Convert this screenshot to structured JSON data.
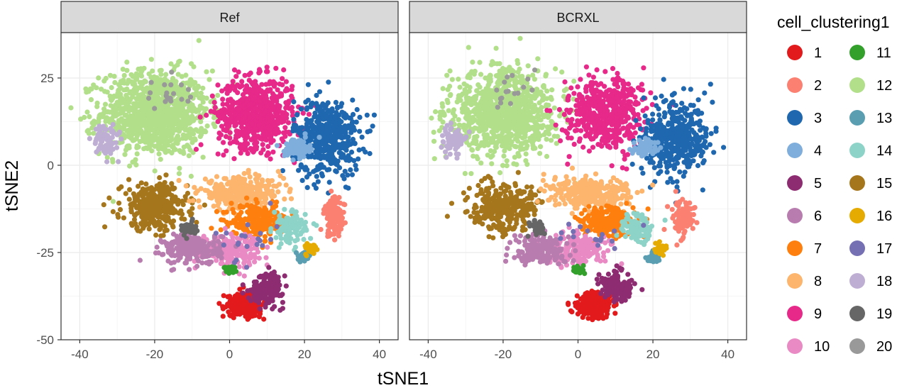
{
  "chart_data": {
    "type": "scatter",
    "facets": [
      "Ref",
      "BCRXL"
    ],
    "xlabel": "tSNE1",
    "ylabel": "tSNE2",
    "xlim": [
      -45,
      45
    ],
    "ylim": [
      -50,
      38
    ],
    "x_ticks": [
      -40,
      -20,
      0,
      20,
      40
    ],
    "x_tick_labels": [
      "-40",
      "-20",
      "0",
      "20",
      "40"
    ],
    "y_ticks": [
      -50,
      -25,
      0,
      25
    ],
    "y_tick_labels": [
      "-50",
      "-25",
      "0",
      "25"
    ],
    "legend": {
      "title": "cell_clustering1",
      "position": "right",
      "entries": [
        {
          "label": "1",
          "color": "#E31A1C"
        },
        {
          "label": "2",
          "color": "#FB8072"
        },
        {
          "label": "3",
          "color": "#1F68B0"
        },
        {
          "label": "4",
          "color": "#7FAEDC"
        },
        {
          "label": "5",
          "color": "#8E2C72"
        },
        {
          "label": "6",
          "color": "#B87DAE"
        },
        {
          "label": "7",
          "color": "#FF7F0E"
        },
        {
          "label": "8",
          "color": "#FDB46C"
        },
        {
          "label": "9",
          "color": "#E7298A"
        },
        {
          "label": "10",
          "color": "#E98AC4"
        },
        {
          "label": "11",
          "color": "#33A02C"
        },
        {
          "label": "12",
          "color": "#B2DF8A"
        },
        {
          "label": "13",
          "color": "#5A9EB2"
        },
        {
          "label": "14",
          "color": "#8DD3C7"
        },
        {
          "label": "15",
          "color": "#A6761D"
        },
        {
          "label": "16",
          "color": "#E6AB02"
        },
        {
          "label": "17",
          "color": "#7570B3"
        },
        {
          "label": "18",
          "color": "#BEAED4"
        },
        {
          "label": "19",
          "color": "#666666"
        },
        {
          "label": "20",
          "color": "#999999"
        }
      ]
    },
    "clusters": [
      {
        "cluster": "12",
        "cx": -20,
        "cy": 15,
        "sx": 13,
        "sy": 11,
        "n": 1100
      },
      {
        "cluster": "9",
        "cx": 7,
        "cy": 15,
        "sx": 9,
        "sy": 9,
        "n": 650
      },
      {
        "cluster": "3",
        "cx": 26,
        "cy": 8,
        "sx": 8,
        "sy": 10,
        "n": 500
      },
      {
        "cluster": "4",
        "cx": 18,
        "cy": 5,
        "sx": 3,
        "sy": 2.5,
        "n": 90
      },
      {
        "cluster": "15",
        "cx": -20,
        "cy": -12,
        "sx": 8,
        "sy": 6,
        "n": 350
      },
      {
        "cluster": "8",
        "cx": 3,
        "cy": -8,
        "sx": 10,
        "sy": 4,
        "n": 350
      },
      {
        "cluster": "7",
        "cx": 8,
        "cy": -16,
        "sx": 7,
        "sy": 4,
        "n": 250
      },
      {
        "cluster": "10",
        "cx": 0,
        "cy": -24,
        "sx": 7,
        "sy": 4,
        "n": 220
      },
      {
        "cluster": "6",
        "cx": -10,
        "cy": -24,
        "sx": 7,
        "sy": 4,
        "n": 220
      },
      {
        "cluster": "2",
        "cx": 28,
        "cy": -15,
        "sx": 2.5,
        "sy": 5,
        "n": 130
      },
      {
        "cluster": "14",
        "cx": 16,
        "cy": -18,
        "sx": 4,
        "sy": 4,
        "n": 120
      },
      {
        "cluster": "1",
        "cx": 4,
        "cy": -40,
        "sx": 4,
        "sy": 3,
        "n": 320
      },
      {
        "cluster": "5",
        "cx": 10,
        "cy": -35,
        "sx": 4,
        "sy": 4,
        "n": 160
      },
      {
        "cluster": "18",
        "cx": -33,
        "cy": 7,
        "sx": 3,
        "sy": 4,
        "n": 80
      },
      {
        "cluster": "19",
        "cx": -11,
        "cy": -18,
        "sx": 2,
        "sy": 2,
        "n": 40
      },
      {
        "cluster": "13",
        "cx": 20,
        "cy": -26,
        "sx": 2,
        "sy": 1.5,
        "n": 40
      },
      {
        "cluster": "16",
        "cx": 22,
        "cy": -24,
        "sx": 1.5,
        "sy": 1.5,
        "n": 30
      },
      {
        "cluster": "11",
        "cx": 0,
        "cy": -30,
        "sx": 1.5,
        "sy": 1,
        "n": 30
      },
      {
        "cluster": "17",
        "cx": 5,
        "cy": -20,
        "sx": 8,
        "sy": 6,
        "n": 20
      },
      {
        "cluster": "20",
        "cx": -18,
        "cy": 20,
        "sx": 6,
        "sy": 5,
        "n": 20
      }
    ]
  }
}
